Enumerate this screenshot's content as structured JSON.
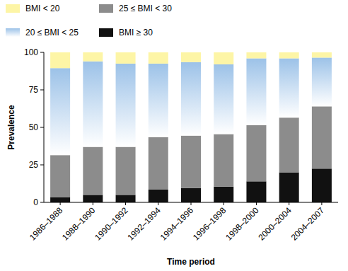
{
  "chart_data": {
    "type": "bar",
    "stacked": true,
    "x_label": "Time period",
    "y_label": "Prevalence",
    "categories": [
      "1986–1988",
      "1988–1990",
      "1990–1992",
      "1992–1994",
      "1994–1996",
      "1996–1998",
      "1998–2000",
      "2000–2004",
      "2004–2007"
    ],
    "series": [
      {
        "name": "BMI ≥ 30",
        "color": "#111111",
        "values": [
          3.5,
          5,
          5,
          8.5,
          9.5,
          10.5,
          14,
          20,
          22.5
        ]
      },
      {
        "name": "25 ≤ BMI < 30",
        "color": "#8c8c8c",
        "values": [
          28,
          32,
          32,
          35,
          35,
          35,
          37.5,
          36.5,
          41.5
        ]
      },
      {
        "name": "20 ≤ BMI < 25",
        "color": "#9cc2e8",
        "values": [
          58,
          57,
          55.5,
          49,
          49,
          46.5,
          44.5,
          39.5,
          32.5
        ]
      },
      {
        "name": "BMI < 20",
        "color": "#fdf5a6",
        "values": [
          10.5,
          6,
          7.5,
          7.5,
          6.5,
          8,
          4,
          4,
          3.5
        ]
      }
    ],
    "ylim": [
      0,
      100
    ],
    "yticks": [
      0,
      25,
      50,
      75,
      100
    ],
    "grid": false
  }
}
